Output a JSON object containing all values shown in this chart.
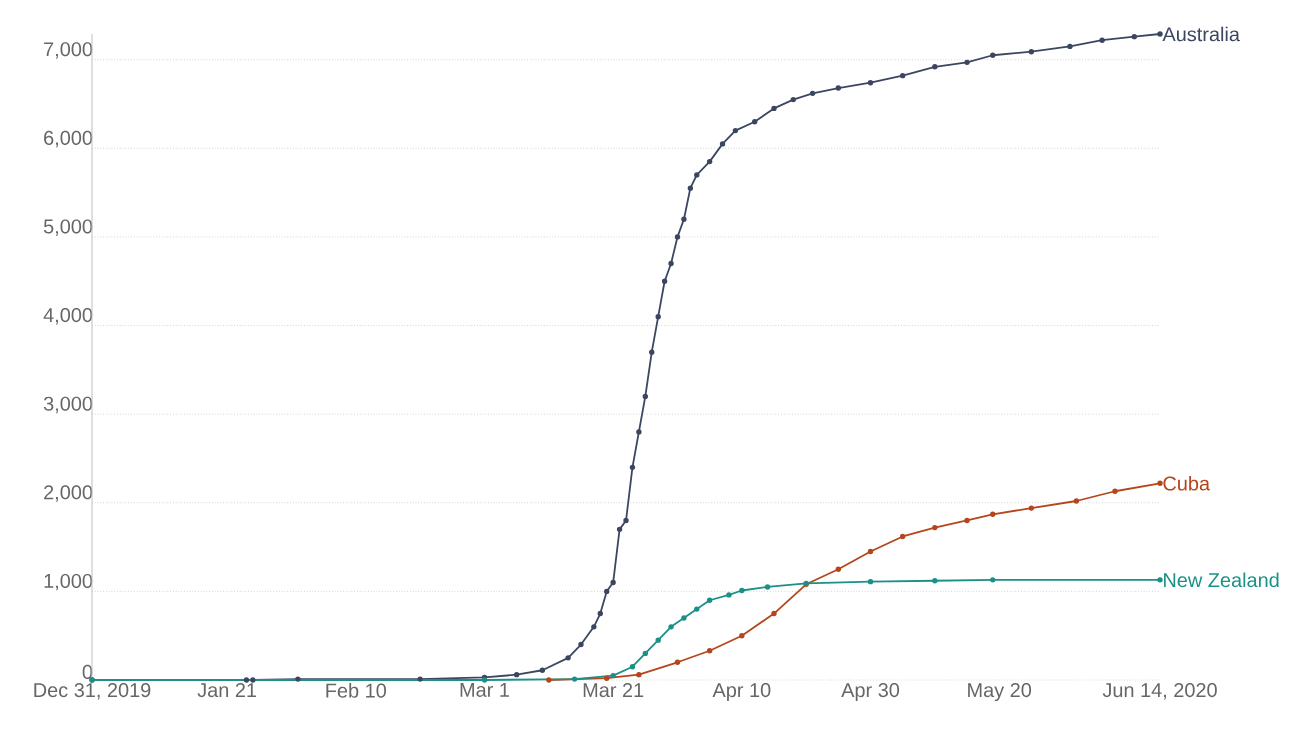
{
  "chart_data": {
    "type": "line",
    "xlim": [
      "2019-12-31",
      "2020-06-14"
    ],
    "ylim": [
      0,
      7290
    ],
    "xticks": [
      {
        "value": "2019-12-31",
        "label": "Dec 31, 2019"
      },
      {
        "value": "2020-01-21",
        "label": "Jan 21"
      },
      {
        "value": "2020-02-10",
        "label": "Feb 10"
      },
      {
        "value": "2020-03-01",
        "label": "Mar 1"
      },
      {
        "value": "2020-03-21",
        "label": "Mar 21"
      },
      {
        "value": "2020-04-10",
        "label": "Apr 10"
      },
      {
        "value": "2020-04-30",
        "label": "Apr 30"
      },
      {
        "value": "2020-05-20",
        "label": "May 20"
      },
      {
        "value": "2020-06-14",
        "label": "Jun 14, 2020"
      }
    ],
    "yticks": [
      0,
      {
        "value": 1000,
        "label": "1,000"
      },
      {
        "value": 2000,
        "label": "2,000"
      },
      {
        "value": 3000,
        "label": "3,000"
      },
      {
        "value": 4000,
        "label": "4,000"
      },
      {
        "value": 5000,
        "label": "5,000"
      },
      {
        "value": 6000,
        "label": "6,000"
      },
      {
        "value": 7000,
        "label": "7,000"
      }
    ],
    "grid": "y",
    "marker": "circle",
    "line_style": "solid",
    "series": [
      {
        "name": "Australia",
        "color": "#3b4660",
        "x": [
          "2019-12-31",
          "2020-01-24",
          "2020-01-25",
          "2020-02-01",
          "2020-02-20",
          "2020-03-01",
          "2020-03-06",
          "2020-03-10",
          "2020-03-14",
          "2020-03-16",
          "2020-03-18",
          "2020-03-19",
          "2020-03-20",
          "2020-03-21",
          "2020-03-22",
          "2020-03-23",
          "2020-03-24",
          "2020-03-25",
          "2020-03-26",
          "2020-03-27",
          "2020-03-28",
          "2020-03-29",
          "2020-03-30",
          "2020-03-31",
          "2020-04-01",
          "2020-04-02",
          "2020-04-03",
          "2020-04-05",
          "2020-04-07",
          "2020-04-09",
          "2020-04-12",
          "2020-04-15",
          "2020-04-18",
          "2020-04-21",
          "2020-04-25",
          "2020-04-30",
          "2020-05-05",
          "2020-05-10",
          "2020-05-15",
          "2020-05-19",
          "2020-05-25",
          "2020-05-31",
          "2020-06-05",
          "2020-06-10",
          "2020-06-14"
        ],
        "values": [
          0,
          0,
          0,
          10,
          10,
          30,
          60,
          110,
          250,
          400,
          600,
          750,
          1000,
          1100,
          1700,
          1800,
          2400,
          2800,
          3200,
          3700,
          4100,
          4500,
          4700,
          5000,
          5200,
          5550,
          5700,
          5850,
          6050,
          6200,
          6300,
          6450,
          6550,
          6620,
          6680,
          6740,
          6820,
          6920,
          6970,
          7050,
          7090,
          7150,
          7220,
          7260,
          7290
        ]
      },
      {
        "name": "Cuba",
        "color": "#b5451b",
        "x": [
          "2020-03-11",
          "2020-03-20",
          "2020-03-25",
          "2020-03-31",
          "2020-04-05",
          "2020-04-10",
          "2020-04-15",
          "2020-04-20",
          "2020-04-25",
          "2020-04-30",
          "2020-05-05",
          "2020-05-10",
          "2020-05-15",
          "2020-05-19",
          "2020-05-25",
          "2020-06-01",
          "2020-06-07",
          "2020-06-14"
        ],
        "values": [
          0,
          20,
          60,
          200,
          330,
          500,
          750,
          1080,
          1250,
          1450,
          1620,
          1720,
          1800,
          1870,
          1940,
          2020,
          2130,
          2220
        ]
      },
      {
        "name": "New Zealand",
        "color": "#1a9088",
        "x": [
          "2019-12-31",
          "2020-03-01",
          "2020-03-15",
          "2020-03-21",
          "2020-03-24",
          "2020-03-26",
          "2020-03-28",
          "2020-03-30",
          "2020-04-01",
          "2020-04-03",
          "2020-04-05",
          "2020-04-08",
          "2020-04-10",
          "2020-04-14",
          "2020-04-20",
          "2020-04-30",
          "2020-05-10",
          "2020-05-19",
          "2020-06-14"
        ],
        "values": [
          0,
          0,
          10,
          50,
          150,
          300,
          450,
          600,
          700,
          800,
          900,
          960,
          1010,
          1050,
          1090,
          1110,
          1120,
          1130,
          1130
        ]
      }
    ]
  }
}
